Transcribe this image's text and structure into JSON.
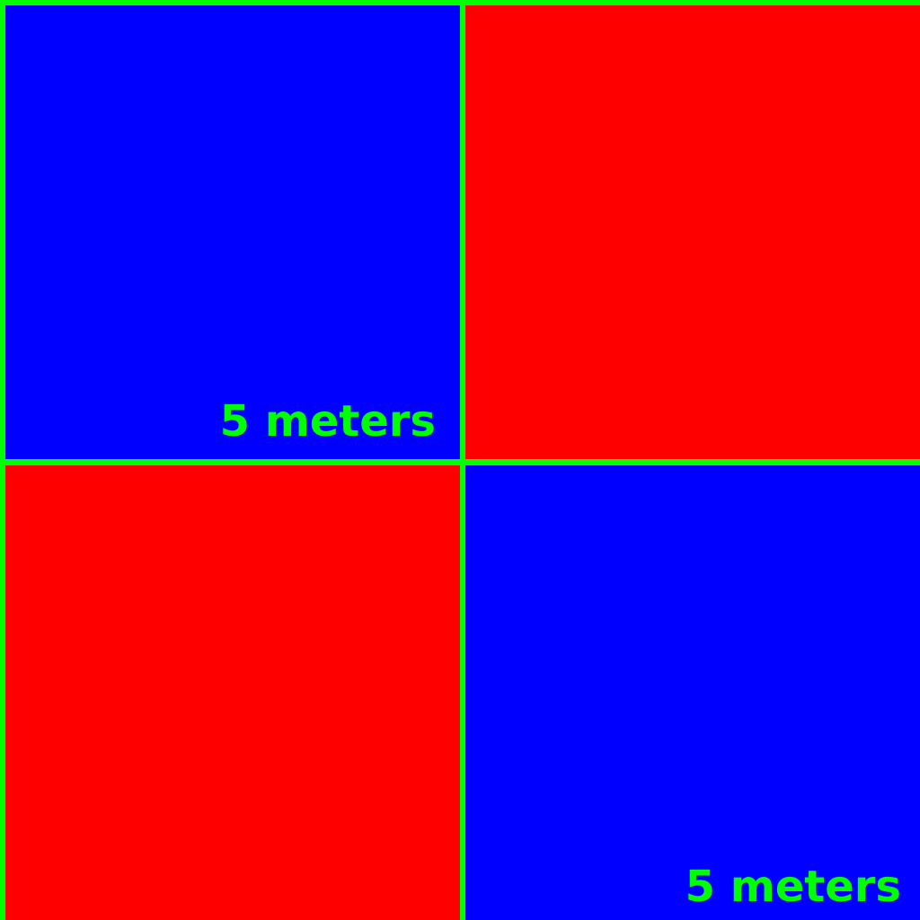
{
  "colors": {
    "grid_line": "#00ff00",
    "blue": "#0000ff",
    "red": "#ff0000",
    "label": "#00ff00"
  },
  "tiles": [
    {
      "position": "top-left",
      "color": "blue",
      "label": "5 meters"
    },
    {
      "position": "top-right",
      "color": "red",
      "label": ""
    },
    {
      "position": "bottom-left",
      "color": "red",
      "label": ""
    },
    {
      "position": "bottom-right",
      "color": "blue",
      "label": "5 meters"
    }
  ]
}
